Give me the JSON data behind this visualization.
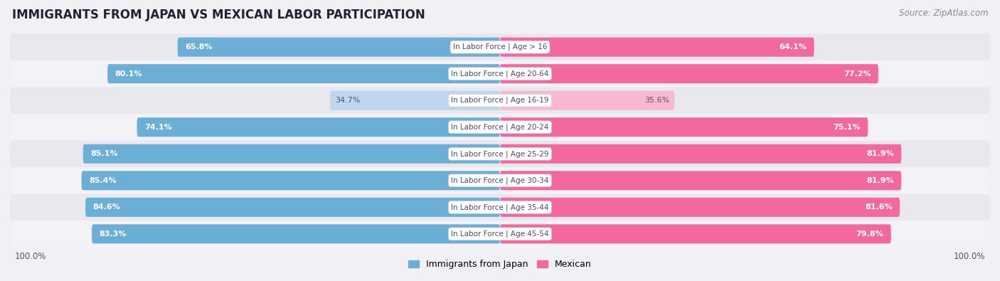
{
  "title": "IMMIGRANTS FROM JAPAN VS MEXICAN LABOR PARTICIPATION",
  "source": "Source: ZipAtlas.com",
  "categories": [
    "In Labor Force | Age > 16",
    "In Labor Force | Age 20-64",
    "In Labor Force | Age 16-19",
    "In Labor Force | Age 20-24",
    "In Labor Force | Age 25-29",
    "In Labor Force | Age 30-34",
    "In Labor Force | Age 35-44",
    "In Labor Force | Age 45-54"
  ],
  "japan_values": [
    65.8,
    80.1,
    34.7,
    74.1,
    85.1,
    85.4,
    84.6,
    83.3
  ],
  "mexico_values": [
    64.1,
    77.2,
    35.6,
    75.1,
    81.9,
    81.9,
    81.6,
    79.8
  ],
  "japan_color_strong": "#6baed6",
  "japan_color_light": "#bdd7ee",
  "mexico_color_strong": "#f468a0",
  "mexico_color_light": "#f9b8d0",
  "row_bg_even": "#e8e8ee",
  "row_bg_odd": "#f2f2f7",
  "label_color": "#4a4a6a",
  "max_value": 100.0,
  "bar_height": 0.72,
  "figsize": [
    14.06,
    3.95
  ],
  "dpi": 100,
  "legend_japan": "Immigrants from Japan",
  "legend_mexico": "Mexican"
}
